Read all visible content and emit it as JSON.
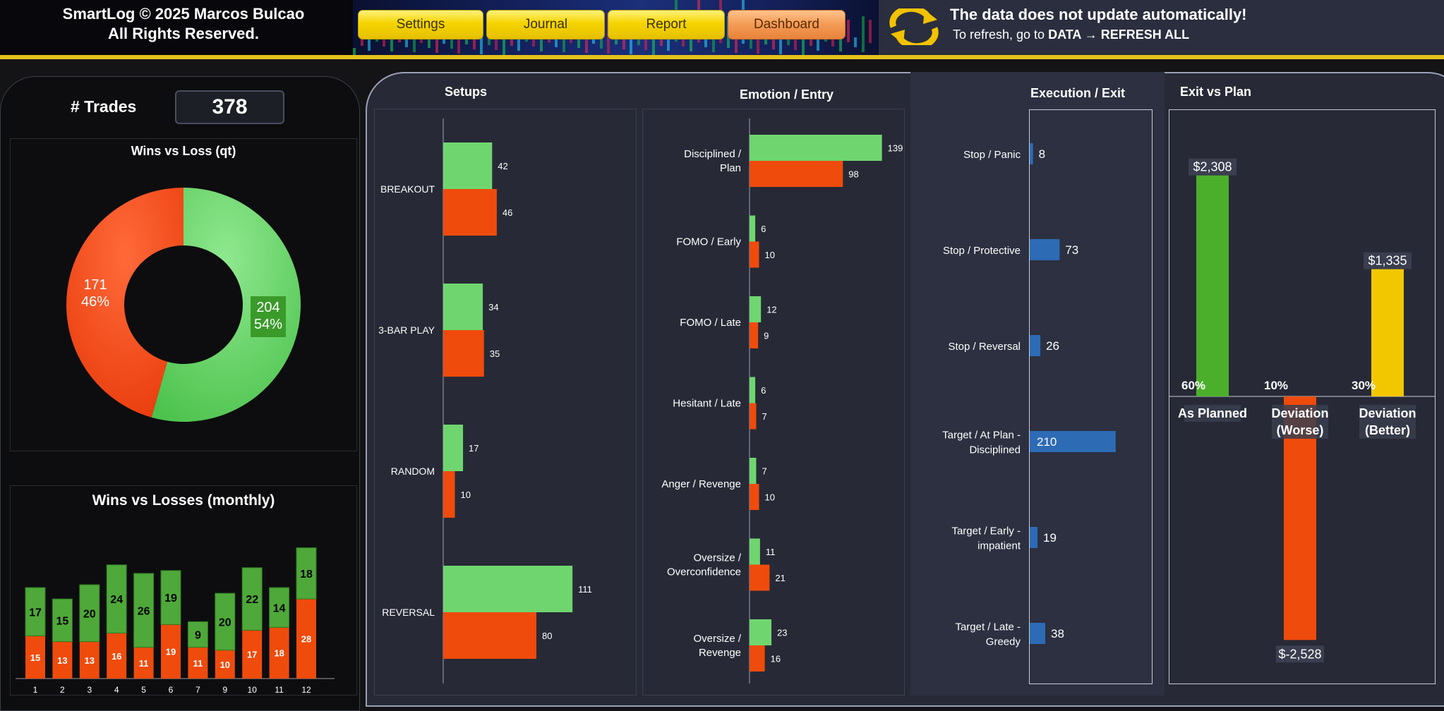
{
  "header": {
    "brand_line1": "SmartLog © 2025 Marcos Bulcao",
    "brand_line2": "All Rights Reserved.",
    "nav": [
      {
        "label": "Settings"
      },
      {
        "label": "Journal"
      },
      {
        "label": "Report"
      },
      {
        "label": "Dashboard"
      }
    ],
    "notice_title": "The data does not update automatically!",
    "notice_prefix": "To refresh, go to ",
    "notice_action": "DATA → REFRESH ALL",
    "refresh_icon": "refresh-icon"
  },
  "colors": {
    "win": "#6fd66f",
    "loss": "#ef4b0c",
    "blue": "#2d6bb5",
    "green_bar": "#4caf2c",
    "yellow_bar": "#f2c700",
    "accent": "#e6c219"
  },
  "trades": {
    "label": "# Trades",
    "value": "378"
  },
  "wins_vs_loss": {
    "title": "Wins vs Loss (qt)",
    "wins": {
      "count": "204",
      "pct": "54%"
    },
    "losses": {
      "count": "171",
      "pct": "46%"
    }
  },
  "monthly": {
    "title": "Wins vs Losses  (monthly)"
  },
  "panels": {
    "setups_title": "Setups",
    "emotion_title": "Emotion / Entry",
    "execution_title": "Execution / Exit",
    "exitplan_title": "Exit vs Plan"
  },
  "chart_data": [
    {
      "type": "pie",
      "title": "Wins vs Loss (qt)",
      "categories": [
        "Wins",
        "Losses"
      ],
      "values": [
        204,
        171
      ],
      "percent_labels": [
        "54%",
        "46%"
      ]
    },
    {
      "type": "bar",
      "title": "Wins vs Losses  (monthly)",
      "categories": [
        "1",
        "2",
        "3",
        "4",
        "5",
        "6",
        "7",
        "9",
        "10",
        "11",
        "12"
      ],
      "stacked": true,
      "series": [
        {
          "values": [
            15,
            13,
            13,
            16,
            11,
            19,
            11,
            10,
            17,
            18,
            28
          ]
        },
        {
          "values": [
            17,
            15,
            20,
            24,
            26,
            19,
            9,
            20,
            22,
            14,
            18
          ]
        }
      ]
    },
    {
      "type": "bar",
      "title": "Setups",
      "orientation": "horizontal",
      "categories": [
        "BREAKOUT",
        "3-BAR PLAY",
        "RANDOM",
        "REVERSAL"
      ],
      "series": [
        {
          "values": [
            42,
            34,
            17,
            111
          ]
        },
        {
          "values": [
            46,
            35,
            10,
            80
          ]
        }
      ]
    },
    {
      "type": "bar",
      "title": "Emotion / Entry",
      "orientation": "horizontal",
      "categories": [
        "Disciplined / Plan",
        "FOMO / Early",
        "FOMO / Late",
        "Hesitant / Late",
        "Anger / Revenge",
        "Oversize / Overconfidence",
        "Oversize / Revenge"
      ],
      "series": [
        {
          "values": [
            139,
            6,
            12,
            6,
            7,
            11,
            23
          ]
        },
        {
          "values": [
            98,
            10,
            9,
            7,
            10,
            21,
            16
          ]
        }
      ]
    },
    {
      "type": "bar",
      "title": "Execution / Exit",
      "orientation": "horizontal",
      "categories": [
        "Stop / Panic",
        "Stop / Protective",
        "Stop / Reversal",
        "Target / At Plan - Disciplined",
        "Target / Early - impatient",
        "Target / Late - Greedy"
      ],
      "values": [
        8,
        73,
        26,
        210,
        19,
        38
      ]
    },
    {
      "type": "bar",
      "title": "Exit vs Plan",
      "categories": [
        "As Planned",
        "Deviation (Worse)",
        "Deviation (Better)"
      ],
      "values": [
        2308,
        -2528,
        1335
      ],
      "value_labels": [
        "$2,308",
        "$-2,528",
        "$1,335"
      ],
      "percent_labels": [
        "60%",
        "10%",
        "30%"
      ]
    }
  ]
}
